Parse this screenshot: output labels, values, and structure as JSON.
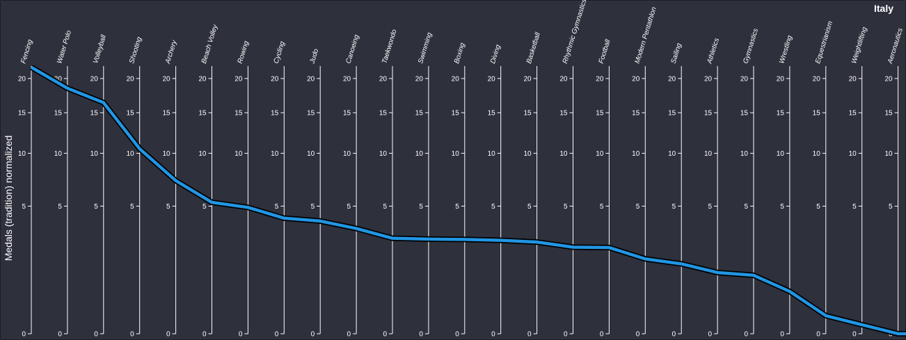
{
  "header": {
    "country": "Italy"
  },
  "chart_data": {
    "type": "line",
    "subtype": "parallel-coordinates",
    "ylabel": "Medals (tradition) normalized",
    "axis_ticks": [
      0,
      5,
      10,
      15,
      20
    ],
    "y_scale": "sqrt",
    "ylim": [
      0,
      22
    ],
    "categories": [
      "Fencing",
      "Water Polo",
      "Volleyball",
      "Shooting",
      "Archery",
      "Beach Volley",
      "Rowing",
      "Cycling",
      "Judo",
      "Canoeing",
      "Taekwondo",
      "Swimming",
      "Boxing",
      "Diving",
      "Basketball",
      "Rhythmic Gymnastics",
      "Football",
      "Modern Pentathlon",
      "Sailing",
      "Athletics",
      "Gymnastics",
      "Wrestling",
      "Equestrianism",
      "Weightlifting",
      "Aeronautics"
    ],
    "series": [
      {
        "values": [
          21.8,
          18.5,
          16.4,
          10.5,
          7.2,
          5.3,
          4.9,
          4.1,
          3.9,
          3.4,
          2.8,
          2.75,
          2.73,
          2.68,
          2.58,
          2.3,
          2.28,
          1.72,
          1.5,
          1.15,
          1.05,
          0.55,
          0.1,
          0.025,
          0
        ],
        "color": "#2196e3"
      }
    ]
  }
}
